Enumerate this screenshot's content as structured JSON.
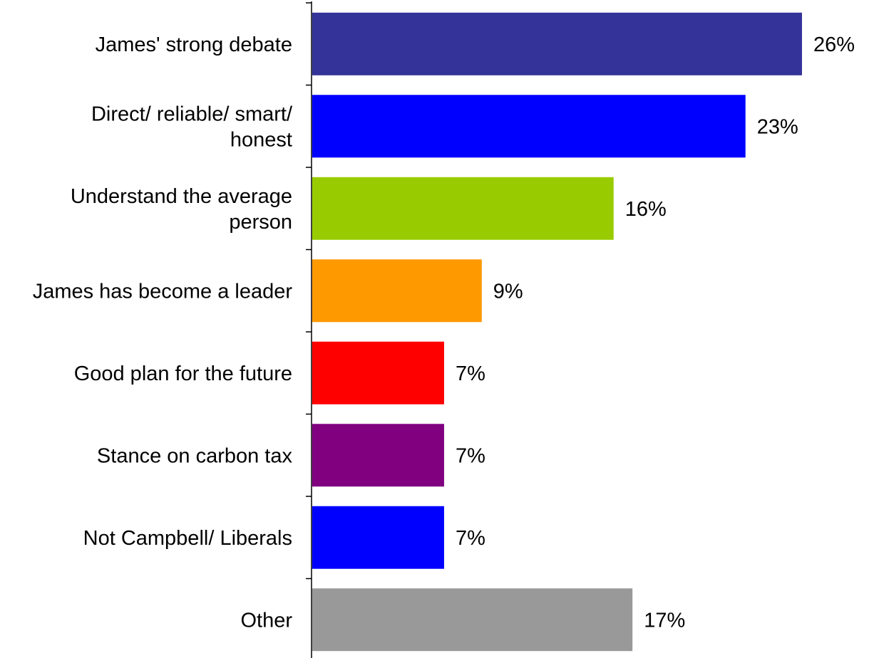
{
  "chart_data": {
    "type": "bar",
    "orientation": "horizontal",
    "categories": [
      [
        "James' strong debate"
      ],
      [
        "Direct/ reliable/ smart/",
        "honest"
      ],
      [
        "Understand the average",
        "person"
      ],
      [
        "James has become a leader"
      ],
      [
        "Good plan for the future"
      ],
      [
        "Stance on carbon tax"
      ],
      [
        "Not Campbell/ Liberals"
      ],
      [
        "Other"
      ]
    ],
    "values": [
      26,
      23,
      16,
      9,
      7,
      7,
      7,
      17
    ],
    "value_labels": [
      "26%",
      "23%",
      "16%",
      "9%",
      "7%",
      "7%",
      "7%",
      "17%"
    ],
    "colors": [
      "#333399",
      "#0000ff",
      "#99cc00",
      "#ff9900",
      "#ff0000",
      "#800080",
      "#0000ff",
      "#999999"
    ],
    "xlim": [
      0,
      26
    ],
    "grid": false,
    "legend": "none"
  }
}
